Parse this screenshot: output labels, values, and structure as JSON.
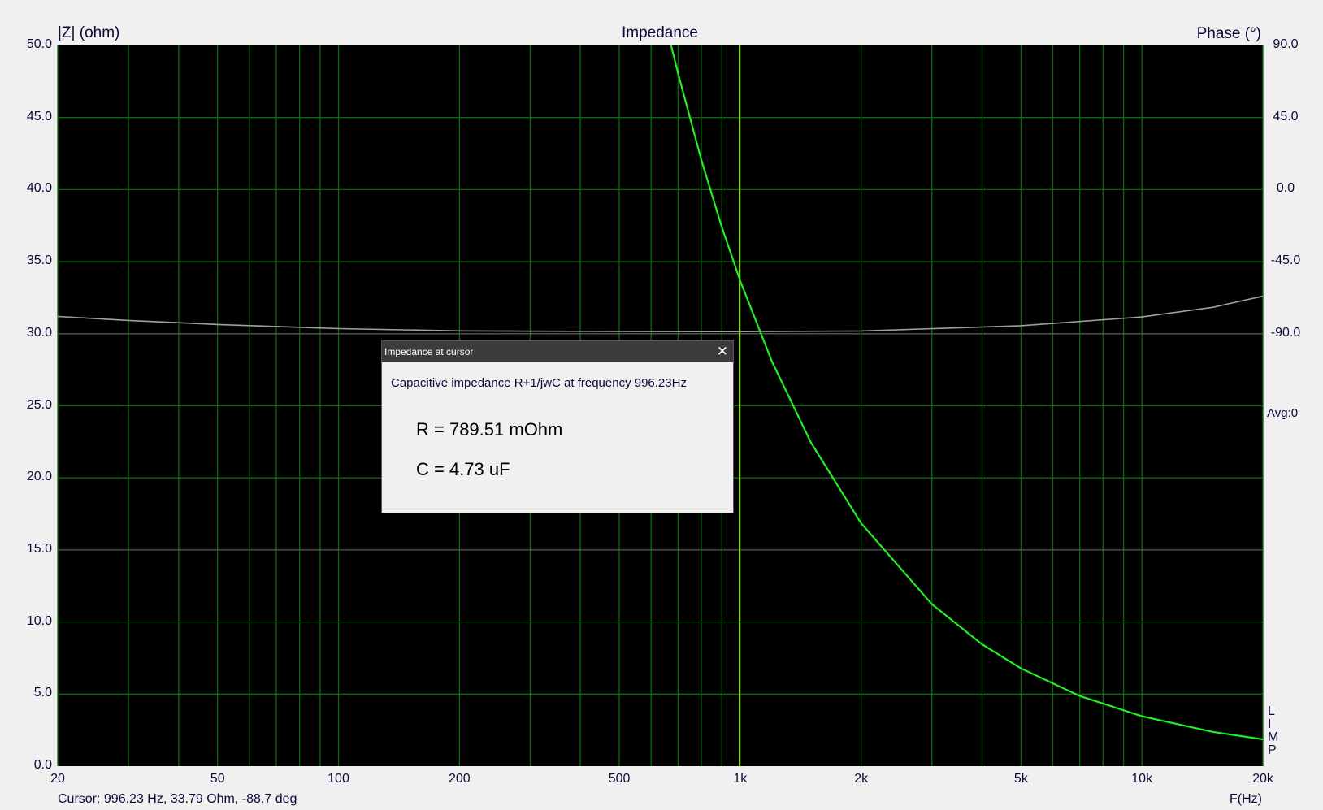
{
  "chart_data": {
    "type": "line",
    "title": "Impedance",
    "ylabel": "|Z| (ohm)",
    "y2label": "Phase (°)",
    "xlabel": "F(Hz)",
    "xscale": "log",
    "xlim": [
      20,
      20000
    ],
    "ylim": [
      0,
      50
    ],
    "y2lim": [
      -90,
      90
    ],
    "grid": true,
    "yticks": [
      "50.0",
      "45.0",
      "40.0",
      "35.0",
      "30.0",
      "25.0",
      "20.0",
      "15.0",
      "10.0",
      "5.0",
      "0.0"
    ],
    "y2ticks": [
      "90.0",
      "45.0",
      "0.0",
      "-45.0",
      "-90.0"
    ],
    "xticks": [
      {
        "v": 20,
        "label": "20"
      },
      {
        "v": 50,
        "label": "50"
      },
      {
        "v": 100,
        "label": "100"
      },
      {
        "v": 200,
        "label": "200"
      },
      {
        "v": 500,
        "label": "500"
      },
      {
        "v": 1000,
        "label": "1k"
      },
      {
        "v": 2000,
        "label": "2k"
      },
      {
        "v": 5000,
        "label": "5k"
      },
      {
        "v": 10000,
        "label": "10k"
      },
      {
        "v": 20000,
        "label": "20k"
      }
    ],
    "series": [
      {
        "axis": "left",
        "color": "#22ee22",
        "x": [
          673,
          700,
          800,
          900,
          1000,
          1200,
          1500,
          2000,
          3000,
          4000,
          5000,
          7000,
          10000,
          15000,
          20000
        ],
        "y": [
          50.0,
          48.07,
          42.07,
          37.4,
          33.66,
          28.06,
          22.45,
          16.85,
          11.24,
          8.45,
          6.78,
          4.87,
          3.46,
          2.38,
          1.86
        ]
      },
      {
        "axis": "right",
        "color": "#a0a0a0",
        "x": [
          20,
          30,
          50,
          100,
          200,
          500,
          1000,
          2000,
          5000,
          10000,
          15000,
          20000
        ],
        "y": [
          -79.2,
          -81.7,
          -84.2,
          -86.8,
          -88.2,
          -88.6,
          -88.7,
          -88.3,
          -85.0,
          -79.5,
          -73.5,
          -66.5
        ]
      }
    ],
    "cursor": {
      "frequency": 996.23,
      "color": "#99dd00"
    },
    "annotations": {
      "avg": "Avg:0",
      "side_letters": [
        "L",
        "I",
        "M",
        "P"
      ]
    }
  },
  "status": {
    "cursor": "Cursor: 996.23 Hz, 33.79 Ohm, -88.7 deg"
  },
  "dialog": {
    "title": "Impedance at cursor",
    "close_icon": "close-icon",
    "description": "Capacitive impedance R+1/jwC at frequency 996.23Hz",
    "r_value": "R = 789.51 mOhm",
    "c_value": "C = 4.73 uF"
  }
}
